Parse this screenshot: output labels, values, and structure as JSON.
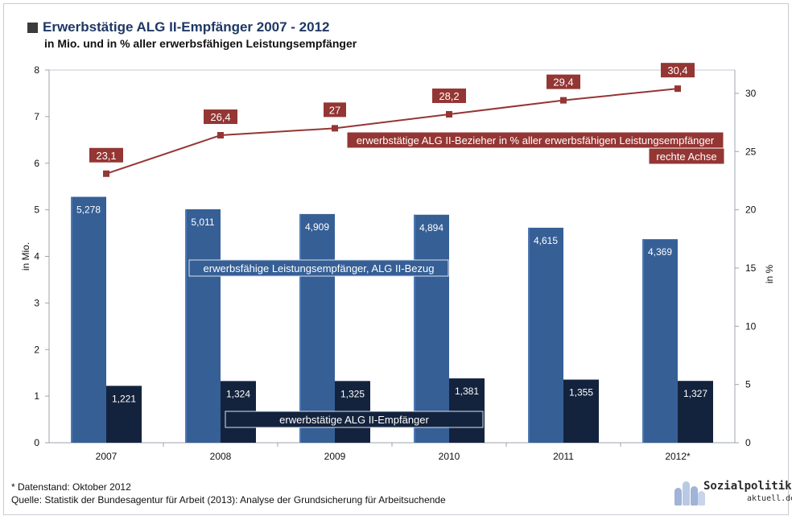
{
  "header": {
    "title": "Erwerbstätige ALG II-Empfänger 2007 - 2012",
    "subtitle": "in Mio. und in % aller erwerbsfähigen Leistungsempfänger"
  },
  "chart_data": {
    "type": "bar",
    "categories": [
      "2007",
      "2008",
      "2009",
      "2010",
      "2011",
      "2012*"
    ],
    "y_left": {
      "label": "in Mio.",
      "ylim": [
        0,
        8
      ],
      "ticks": [
        "0",
        "1",
        "2",
        "3",
        "4",
        "5",
        "6",
        "7",
        "8"
      ]
    },
    "y_right": {
      "label": "in %",
      "ylim": [
        0,
        32
      ],
      "ticks": [
        "0",
        "5",
        "10",
        "15",
        "20",
        "25",
        "30"
      ]
    },
    "grid": false,
    "series": [
      {
        "name": "erwerbsfähige Leistungsempfänger, ALG II-Bezug",
        "type": "bar",
        "axis": "left",
        "color": "#365f96",
        "values": [
          5.278,
          5.011,
          4.909,
          4.894,
          4.615,
          4.369
        ],
        "labels": [
          "5,278",
          "5,011",
          "4,909",
          "4,894",
          "4,615",
          "4,369"
        ]
      },
      {
        "name": "erwerbstätige ALG II-Empfänger",
        "type": "bar",
        "axis": "left",
        "color": "#14233d",
        "values": [
          1.221,
          1.324,
          1.325,
          1.381,
          1.355,
          1.327
        ],
        "labels": [
          "1,221",
          "1,324",
          "1,325",
          "1,381",
          "1,355",
          "1,327"
        ]
      },
      {
        "name": "erwerbstätige ALG II-Bezieher in % aller erwerbsfähigen Leistungsempfänger",
        "name_note": "rechte Achse",
        "type": "line",
        "axis": "right",
        "color": "#943634",
        "values": [
          23.1,
          26.4,
          27,
          28.2,
          29.4,
          30.4
        ],
        "labels": [
          "23,1",
          "26,4",
          "27",
          "28,2",
          "29,4",
          "30,4"
        ]
      }
    ]
  },
  "footer": {
    "note": "* Datenstand: Oktober 2012",
    "source": "Quelle: Statistik der Bundesagentur für Arbeit (2013): Analyse der Grundsicherung für Arbeitsuchende"
  },
  "logo": {
    "text": "Sozialpolitik-",
    "sub": "aktuell.de"
  }
}
